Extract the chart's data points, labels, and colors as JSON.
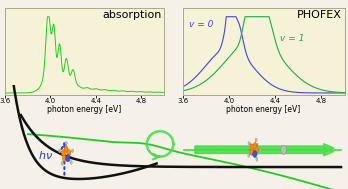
{
  "background_color": "#f5f0e8",
  "left_panel": {
    "title": "absorption",
    "xlabel": "photon energy [eV]",
    "xlim": [
      3.6,
      5.0
    ],
    "color": "#22cc22",
    "box_color": "#f5f2d8"
  },
  "right_panel": {
    "title": "PHOFEX",
    "xlabel": "photon energy [eV]",
    "xlim": [
      3.6,
      5.0
    ],
    "color_v0": "#4444dd",
    "color_v1": "#22aa44",
    "label_v0": "v = 0",
    "label_v1": "v = 1",
    "box_color": "#f5f2d8"
  },
  "xticks": [
    3.6,
    4.0,
    4.4,
    4.8
  ],
  "xtick_labels": [
    "3.6",
    "4.0",
    "4.4",
    "4.8"
  ],
  "green_arrow_color": "#44dd44",
  "green_line_color": "#22cc22",
  "black_curve_color": "#111111",
  "blue_arrow_color": "#3344cc",
  "hv_color": "#2244bb",
  "orange_color": "#ff8800",
  "blue_atom_color": "#3355ee",
  "gray_atom_color": "#bbbbbb"
}
